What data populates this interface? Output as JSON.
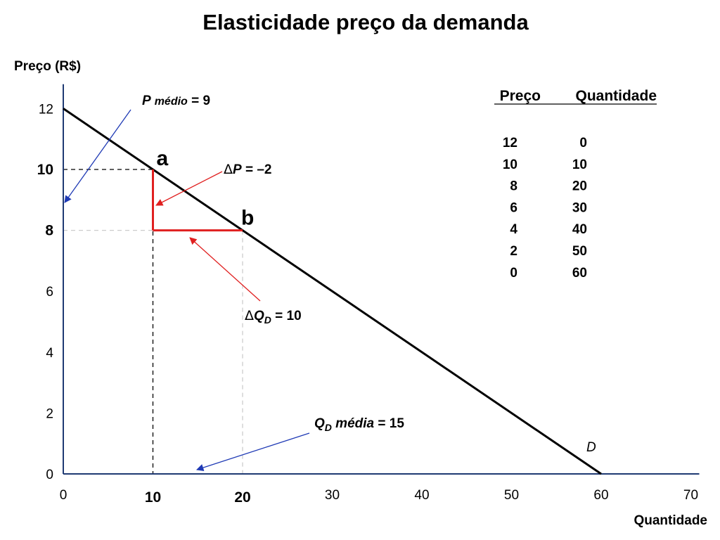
{
  "chart_data": {
    "type": "line",
    "title": "Elasticidade preço da demanda",
    "ylabel": "Preço (R$)",
    "xlabel": "Quantidade",
    "xlim": [
      0,
      70
    ],
    "ylim": [
      0,
      12.8
    ],
    "x_ticks": [
      "0",
      "10",
      "20",
      "30",
      "40",
      "50",
      "60",
      "70"
    ],
    "y_ticks": [
      "0",
      "2",
      "4",
      "6",
      "8",
      "10",
      "12"
    ],
    "bold_x_ticks": [
      "10",
      "20"
    ],
    "bold_y_ticks": [
      "8",
      "10"
    ],
    "series": [
      {
        "name": "D",
        "x": [
          0,
          60
        ],
        "y": [
          12,
          0
        ]
      }
    ],
    "points": [
      {
        "label": "a",
        "x": 10,
        "y": 10
      },
      {
        "label": "b",
        "x": 20,
        "y": 8
      }
    ],
    "annotations": {
      "p_medio": "P médio = 9",
      "delta_p": "ΔP = –2",
      "delta_qd": "ΔQD = 10",
      "qd_media": "QD média = 15"
    },
    "table": {
      "headers": [
        "Preço",
        "Quantidade"
      ],
      "rows": [
        [
          "12",
          "0"
        ],
        [
          "10",
          "10"
        ],
        [
          "8",
          "20"
        ],
        [
          "6",
          "30"
        ],
        [
          "4",
          "40"
        ],
        [
          "2",
          "50"
        ],
        [
          "0",
          "60"
        ]
      ]
    },
    "colors": {
      "axis": "#1f3a73",
      "demand": "#000000",
      "delta": "#e02020",
      "arrow_blue": "#1f3ab5",
      "arrow_red": "#e02020"
    }
  }
}
